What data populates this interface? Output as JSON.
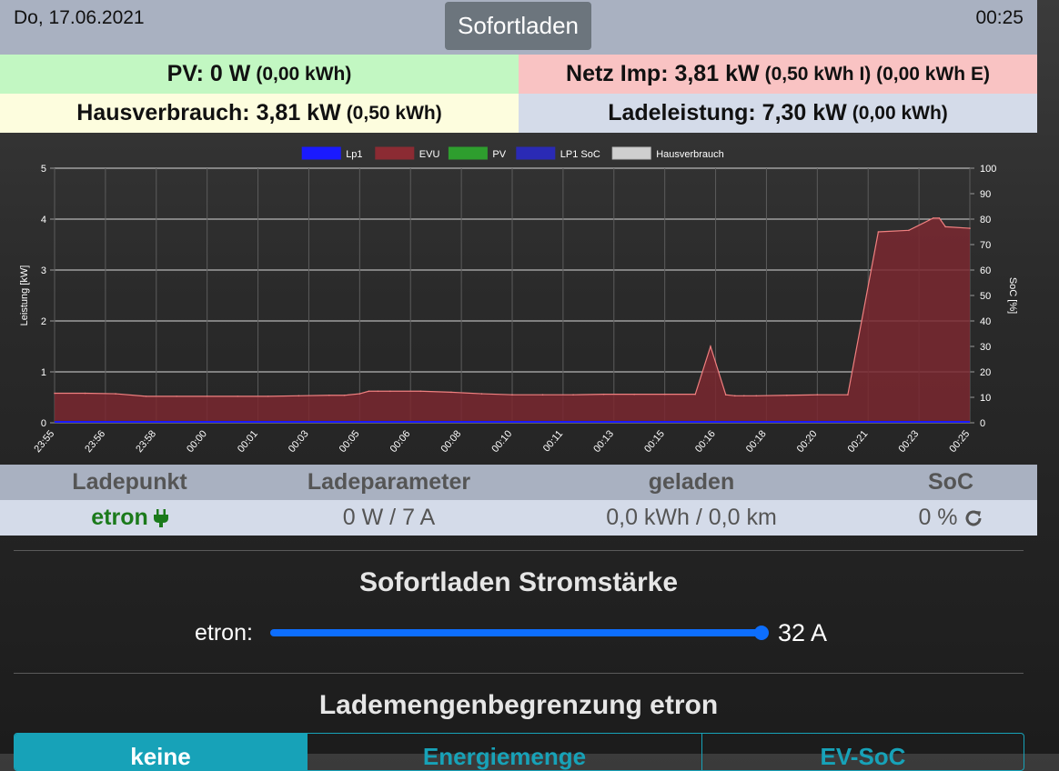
{
  "header": {
    "date": "Do, 17.06.2021",
    "mode_button": "Sofortladen",
    "time": "00:25"
  },
  "stats": {
    "pv_main": "PV: 0 W",
    "pv_sub": "(0,00 kWh)",
    "netz_main": "Netz Imp: 3,81 kW",
    "netz_sub": "(0,50 kWh I) (0,00 kWh E)",
    "haus_main": "Hausverbrauch: 3,81 kW",
    "haus_sub": "(0,50 kWh)",
    "lade_main": "Ladeleistung: 7,30 kW",
    "lade_sub": "(0,00 kWh)"
  },
  "chart_data": {
    "type": "area",
    "ylabel": "Leistung [kW]",
    "y2label": "SoC [%]",
    "ylim": [
      0,
      5
    ],
    "y2lim": [
      0,
      100
    ],
    "yticks": [
      "0",
      "1",
      "2",
      "3",
      "4",
      "5"
    ],
    "y2ticks": [
      "0",
      "10",
      "20",
      "30",
      "40",
      "50",
      "60",
      "70",
      "80",
      "90",
      "100"
    ],
    "xticks": [
      "23:55",
      "23:56",
      "23:58",
      "00:00",
      "00:01",
      "00:03",
      "00:05",
      "00:06",
      "00:08",
      "00:10",
      "00:11",
      "00:13",
      "00:15",
      "00:16",
      "00:18",
      "00:20",
      "00:21",
      "00:23",
      "00:25"
    ],
    "grid": true,
    "legend_position": "top",
    "legend": [
      {
        "name": "Lp1",
        "color": "#1a1aff"
      },
      {
        "name": "EVU",
        "color": "#8b2b33"
      },
      {
        "name": "PV",
        "color": "#2e9e2e"
      },
      {
        "name": "LP1 SoC",
        "color": "#2a2ab5"
      },
      {
        "name": "Hausverbrauch",
        "color": "#cfcfcf"
      }
    ],
    "series": [
      {
        "name": "EVU",
        "color": "#7a2830",
        "line_color": "#f08080",
        "x_minutes": [
          0,
          1,
          2,
          3,
          4,
          5,
          6,
          7,
          8,
          9,
          9.5,
          10,
          10.3,
          10.6,
          11,
          12,
          13,
          14,
          15,
          16,
          17,
          18,
          19,
          20,
          21,
          21.5,
          22,
          22.3,
          22.6,
          23,
          24,
          25,
          26,
          27,
          28,
          28.8,
          29,
          29.2,
          30
        ],
        "values": [
          0.58,
          0.58,
          0.57,
          0.52,
          0.52,
          0.52,
          0.52,
          0.52,
          0.53,
          0.54,
          0.54,
          0.57,
          0.62,
          0.62,
          0.62,
          0.62,
          0.6,
          0.57,
          0.55,
          0.55,
          0.55,
          0.56,
          0.56,
          0.56,
          0.56,
          1.5,
          0.55,
          0.53,
          0.53,
          0.53,
          0.54,
          0.55,
          0.55,
          3.75,
          3.78,
          4.02,
          4.02,
          3.85,
          3.82
        ]
      },
      {
        "name": "Lp1",
        "color": "#1a1aff",
        "x_minutes": [
          0,
          30
        ],
        "values": [
          0,
          0
        ]
      }
    ]
  },
  "table": {
    "headers": [
      "Ladepunkt",
      "Ladeparameter",
      "geladen",
      "SoC"
    ],
    "row": {
      "name": "etron",
      "params": "0 W / 7 A",
      "charged": "0,0 kWh / 0,0 km",
      "soc": "0 %"
    }
  },
  "sofortladen": {
    "title": "Sofortladen Stromstärke",
    "label": "etron:",
    "value": "32 A",
    "level_fraction": 1.0
  },
  "limit": {
    "title": "Lademengenbegrenzung etron",
    "options": [
      "keine",
      "Energiemenge",
      "EV-SoC"
    ],
    "selected": "keine"
  },
  "colors": {
    "accent": "#0d6efd",
    "info": "#17a2b8"
  }
}
